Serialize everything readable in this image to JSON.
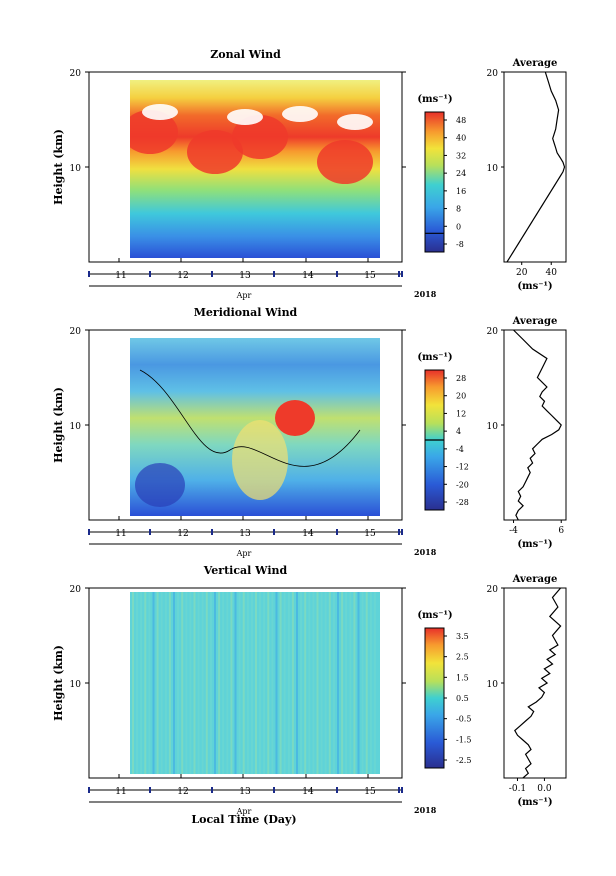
{
  "figure": {
    "xlabel": "Local Time (Day)"
  },
  "chart_data": [
    {
      "type": "heatmap",
      "title": "Zonal Wind",
      "ylabel": "Height (km)",
      "ylim": [
        0,
        20
      ],
      "yticks": [
        "20",
        "10"
      ],
      "xticks": [
        "11",
        "12",
        "13",
        "14",
        "15"
      ],
      "month_label": "Apr",
      "year_label": "2018",
      "colorbar": {
        "unit": "(ms⁻¹)",
        "ticks": [
          "48",
          "40",
          "32",
          "24",
          "16",
          "8",
          "0",
          "-8"
        ],
        "range": [
          -8,
          52
        ],
        "zero_line": 0
      },
      "profile": {
        "title": "Average",
        "xlabel": "(ms⁻¹)",
        "xticks": [
          "20",
          "40"
        ],
        "xlim": [
          8,
          50
        ],
        "x": [
          10,
          12,
          14,
          16,
          18,
          20,
          22,
          24,
          26,
          28,
          30,
          32,
          34,
          36,
          38,
          40,
          42,
          44,
          46,
          48,
          49,
          48,
          46,
          44,
          43,
          42,
          41,
          42,
          43,
          44,
          45,
          43,
          40,
          38,
          36
        ],
        "y": [
          0,
          0.5,
          1,
          1.5,
          2,
          2.5,
          3,
          3.5,
          4,
          4.5,
          5,
          5.5,
          6,
          6.5,
          7,
          7.5,
          8,
          8.5,
          9,
          9.5,
          10,
          10.5,
          11,
          11.5,
          12,
          12.5,
          13,
          13.5,
          14,
          15,
          16,
          17,
          18,
          19,
          20
        ]
      }
    },
    {
      "type": "heatmap",
      "title": "Meridional Wind",
      "ylabel": "Height (km)",
      "ylim": [
        0,
        20
      ],
      "yticks": [
        "20",
        "10"
      ],
      "xticks": [
        "11",
        "12",
        "13",
        "14",
        "15"
      ],
      "month_label": "Apr",
      "year_label": "2018",
      "colorbar": {
        "unit": "(ms⁻¹)",
        "ticks": [
          "28",
          "20",
          "12",
          "4",
          "-4",
          "-12",
          "-20",
          "-28"
        ],
        "range": [
          -32,
          32
        ],
        "zero_line": 0
      },
      "profile": {
        "title": "Average",
        "xlabel": "(ms⁻¹)",
        "xticks": [
          "-4",
          "6"
        ],
        "xlim": [
          -6,
          7
        ],
        "x": [
          -3,
          -3.5,
          -3,
          -2,
          -3,
          -2.5,
          -3,
          -2,
          -1.5,
          -1,
          -0.5,
          -1,
          0,
          -0.5,
          0.5,
          0,
          1,
          2,
          4,
          5.5,
          6,
          5,
          4,
          3,
          2,
          2.5,
          1.5,
          2,
          3,
          1,
          2,
          3,
          0,
          -2,
          -4
        ],
        "y": [
          0,
          0.5,
          1,
          1.5,
          2,
          2.5,
          3,
          3.5,
          4,
          4.5,
          5,
          5.5,
          6,
          6.5,
          7,
          7.5,
          8,
          8.5,
          9,
          9.5,
          10,
          10.5,
          11,
          11.5,
          12,
          12.5,
          13,
          13.5,
          14,
          15,
          16,
          17,
          18,
          19,
          20
        ]
      }
    },
    {
      "type": "heatmap",
      "title": "Vertical Wind",
      "ylabel": "Height (km)",
      "ylim": [
        0,
        20
      ],
      "yticks": [
        "20",
        "10"
      ],
      "xticks": [
        "11",
        "12",
        "13",
        "14",
        "15"
      ],
      "month_label": "Apr",
      "year_label": "2018",
      "colorbar": {
        "unit": "(ms⁻¹)",
        "ticks": [
          "3.5",
          "2.5",
          "1.5",
          "0.5",
          "-0.5",
          "-1.5",
          "-2.5"
        ],
        "range": [
          -3,
          4
        ]
      },
      "profile": {
        "title": "Average",
        "xlabel": "(ms⁻¹)",
        "xticks": [
          "-0.1",
          "0.0"
        ],
        "xlim": [
          -0.15,
          0.08
        ],
        "x": [
          -0.08,
          -0.06,
          -0.07,
          -0.05,
          -0.06,
          -0.07,
          -0.05,
          -0.06,
          -0.08,
          -0.1,
          -0.11,
          -0.09,
          -0.07,
          -0.05,
          -0.04,
          -0.06,
          -0.03,
          -0.01,
          0.0,
          -0.02,
          0.01,
          -0.01,
          0.02,
          0.0,
          0.03,
          0.01,
          0.04,
          0.02,
          0.05,
          0.03,
          0.06,
          0.02,
          0.05,
          0.03,
          0.06
        ],
        "y": [
          0,
          0.5,
          1,
          1.5,
          2,
          2.5,
          3,
          3.5,
          4,
          4.5,
          5,
          5.5,
          6,
          6.5,
          7,
          7.5,
          8,
          8.5,
          9,
          9.5,
          10,
          10.5,
          11,
          11.5,
          12,
          12.5,
          13,
          13.5,
          14,
          15,
          16,
          17,
          18,
          19,
          20
        ]
      }
    }
  ]
}
